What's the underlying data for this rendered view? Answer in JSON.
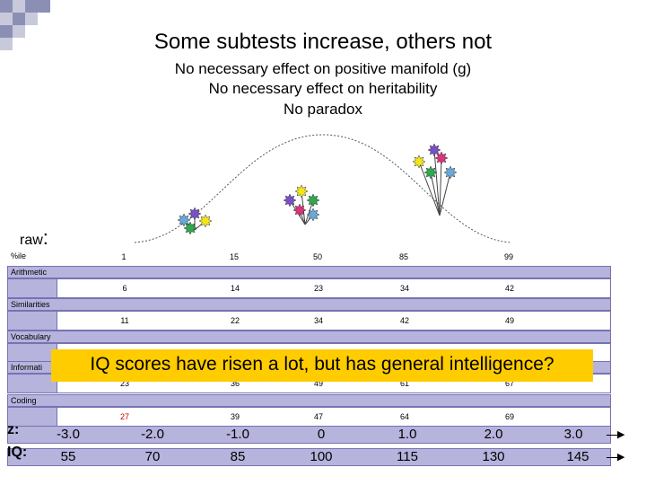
{
  "slide": {
    "title": "Some subtests increase, others not",
    "bullets": [
      "No necessary effect on positive manifold (g)",
      "No necessary effect on heritability",
      "No paradox"
    ],
    "raw_label": "raw",
    "colon": ":",
    "rows": {
      "pctile": {
        "label": "%ile",
        "values": [
          "1",
          "15",
          "50",
          "85",
          "99"
        ]
      },
      "arithmetic": {
        "label": "Arithmetic",
        "values": [
          "6",
          "14",
          "23",
          "34",
          "42"
        ]
      },
      "similarities": {
        "label": "Similarities",
        "values": [
          "11",
          "22",
          "34",
          "42",
          "49"
        ]
      },
      "vocabulary": {
        "label": "Vocabulary"
      },
      "information": {
        "label": "Informati",
        "values": [
          "23",
          "36",
          "49",
          "61",
          "67"
        ]
      },
      "coding": {
        "label": "Coding",
        "values": [
          "27",
          "39",
          "47",
          "64",
          "69"
        ]
      }
    },
    "banner": "IQ scores have risen a lot, but has general intelligence?",
    "z": {
      "label": "z:",
      "values": [
        "-3.0",
        "-2.0",
        "-1.0",
        "0",
        "1.0",
        "2.0",
        "3.0"
      ]
    },
    "iq": {
      "label": "IQ:",
      "values": [
        "55",
        "70",
        "85",
        "100",
        "115",
        "130",
        "145"
      ]
    },
    "colors": {
      "bar_fill": "#b6b3dc",
      "bar_border": "#7672b5",
      "banner": "#ffcc00",
      "coding_first_value": "#cc0000",
      "flowers": [
        "#6aa8d8",
        "#7a4fc7",
        "#f2e61a",
        "#2fa84f",
        "#d8357a"
      ]
    }
  }
}
